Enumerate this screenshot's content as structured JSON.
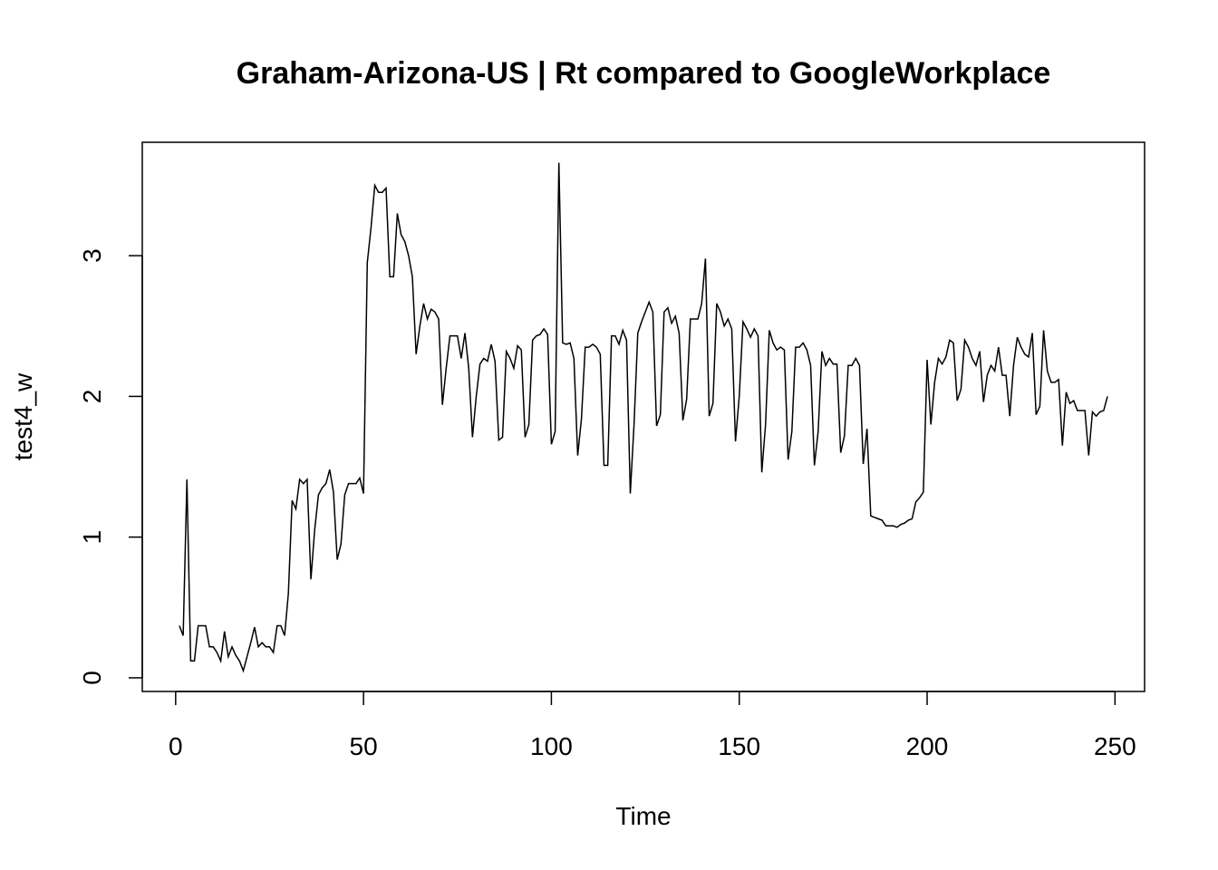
{
  "chart_data": {
    "type": "line",
    "title": "Graham-Arizona-US | Rt compared to GoogleWorkplace",
    "x_label": "Time",
    "y_label": "test4_w",
    "x": [
      1,
      2,
      3,
      4,
      5,
      6,
      7,
      8,
      9,
      10,
      11,
      12,
      13,
      14,
      15,
      16,
      17,
      18,
      19,
      20,
      21,
      22,
      23,
      24,
      25,
      26,
      27,
      28,
      29,
      30,
      31,
      32,
      33,
      34,
      35,
      36,
      37,
      38,
      39,
      40,
      41,
      42,
      43,
      44,
      45,
      46,
      47,
      48,
      49,
      50,
      51,
      52,
      53,
      54,
      55,
      56,
      57,
      58,
      59,
      60,
      61,
      62,
      63,
      64,
      65,
      66,
      67,
      68,
      69,
      70,
      71,
      72,
      73,
      74,
      75,
      76,
      77,
      78,
      79,
      80,
      81,
      82,
      83,
      84,
      85,
      86,
      87,
      88,
      89,
      90,
      91,
      92,
      93,
      94,
      95,
      96,
      97,
      98,
      99,
      100,
      101,
      102,
      103,
      104,
      105,
      106,
      107,
      108,
      109,
      110,
      111,
      112,
      113,
      114,
      115,
      116,
      117,
      118,
      119,
      120,
      121,
      122,
      123,
      124,
      125,
      126,
      127,
      128,
      129,
      130,
      131,
      132,
      133,
      134,
      135,
      136,
      137,
      138,
      139,
      140,
      141,
      142,
      143,
      144,
      145,
      146,
      147,
      148,
      149,
      150,
      151,
      152,
      153,
      154,
      155,
      156,
      157,
      158,
      159,
      160,
      161,
      162,
      163,
      164,
      165,
      166,
      167,
      168,
      169,
      170,
      171,
      172,
      173,
      174,
      175,
      176,
      177,
      178,
      179,
      180,
      181,
      182,
      183,
      184,
      185,
      186,
      187,
      188,
      189,
      190,
      191,
      192,
      193,
      194,
      195,
      196,
      197,
      198,
      199,
      200,
      201,
      202,
      203,
      204,
      205,
      206,
      207,
      208,
      209,
      210,
      211,
      212,
      213,
      214,
      215,
      216,
      217,
      218,
      219,
      220,
      221,
      222,
      223,
      224,
      225,
      226,
      227,
      228,
      229,
      230,
      231,
      232,
      233,
      234,
      235,
      236,
      237,
      238,
      239,
      240,
      241,
      242,
      243,
      244,
      245,
      246,
      247,
      248
    ],
    "series": [
      {
        "name": "test4_w",
        "color": "#000000",
        "values": [
          0.37,
          0.3,
          1.41,
          0.12,
          0.12,
          0.37,
          0.37,
          0.37,
          0.22,
          0.22,
          0.18,
          0.12,
          0.33,
          0.15,
          0.22,
          0.16,
          0.12,
          0.05,
          0.15,
          0.25,
          0.36,
          0.22,
          0.25,
          0.22,
          0.22,
          0.18,
          0.37,
          0.37,
          0.3,
          0.6,
          1.26,
          1.2,
          1.41,
          1.38,
          1.41,
          0.7,
          1.05,
          1.3,
          1.35,
          1.38,
          1.48,
          1.32,
          0.84,
          0.95,
          1.3,
          1.38,
          1.38,
          1.38,
          1.42,
          1.31,
          2.95,
          3.2,
          3.5,
          3.45,
          3.45,
          3.48,
          2.85,
          2.85,
          3.3,
          3.15,
          3.1,
          3.0,
          2.85,
          2.3,
          2.5,
          2.66,
          2.55,
          2.62,
          2.6,
          2.55,
          1.94,
          2.2,
          2.43,
          2.43,
          2.43,
          2.27,
          2.45,
          2.2,
          1.71,
          2.0,
          2.23,
          2.27,
          2.25,
          2.37,
          2.25,
          1.69,
          1.71,
          2.32,
          2.27,
          2.2,
          2.36,
          2.33,
          1.71,
          1.8,
          2.4,
          2.43,
          2.44,
          2.48,
          2.44,
          1.66,
          1.75,
          3.66,
          2.38,
          2.37,
          2.38,
          2.27,
          1.58,
          1.84,
          2.35,
          2.35,
          2.37,
          2.35,
          2.3,
          1.51,
          1.51,
          2.43,
          2.43,
          2.37,
          2.47,
          2.4,
          1.31,
          1.8,
          2.45,
          2.53,
          2.6,
          2.67,
          2.6,
          1.79,
          1.87,
          2.6,
          2.63,
          2.52,
          2.57,
          2.45,
          1.83,
          1.98,
          2.55,
          2.55,
          2.55,
          2.66,
          2.98,
          1.86,
          1.95,
          2.66,
          2.6,
          2.5,
          2.55,
          2.48,
          1.68,
          2.0,
          2.53,
          2.48,
          2.42,
          2.48,
          2.43,
          1.46,
          1.8,
          2.47,
          2.38,
          2.33,
          2.35,
          2.33,
          1.55,
          1.75,
          2.35,
          2.35,
          2.38,
          2.33,
          2.22,
          1.51,
          1.75,
          2.32,
          2.22,
          2.27,
          2.23,
          2.23,
          1.6,
          1.72,
          2.22,
          2.22,
          2.27,
          2.22,
          1.52,
          1.77,
          1.15,
          1.14,
          1.13,
          1.12,
          1.08,
          1.08,
          1.08,
          1.07,
          1.09,
          1.1,
          1.12,
          1.13,
          1.25,
          1.28,
          1.32,
          2.26,
          1.8,
          2.1,
          2.27,
          2.23,
          2.28,
          2.4,
          2.38,
          1.97,
          2.05,
          2.4,
          2.35,
          2.27,
          2.22,
          2.32,
          1.96,
          2.15,
          2.22,
          2.18,
          2.35,
          2.15,
          2.15,
          1.86,
          2.22,
          2.42,
          2.35,
          2.3,
          2.28,
          2.45,
          1.87,
          1.93,
          2.47,
          2.18,
          2.1,
          2.1,
          2.12,
          1.65,
          2.03,
          1.95,
          1.97,
          1.9,
          1.9,
          1.9,
          1.58,
          1.89,
          1.86,
          1.89,
          1.9,
          2.0
        ]
      }
    ],
    "xlim": [
      -8.88,
      257.88
    ],
    "xticks": [
      0,
      50,
      100,
      150,
      200,
      250
    ],
    "ylim": [
      -0.097,
      3.806
    ],
    "yticks": [
      0,
      1,
      2,
      3
    ]
  }
}
